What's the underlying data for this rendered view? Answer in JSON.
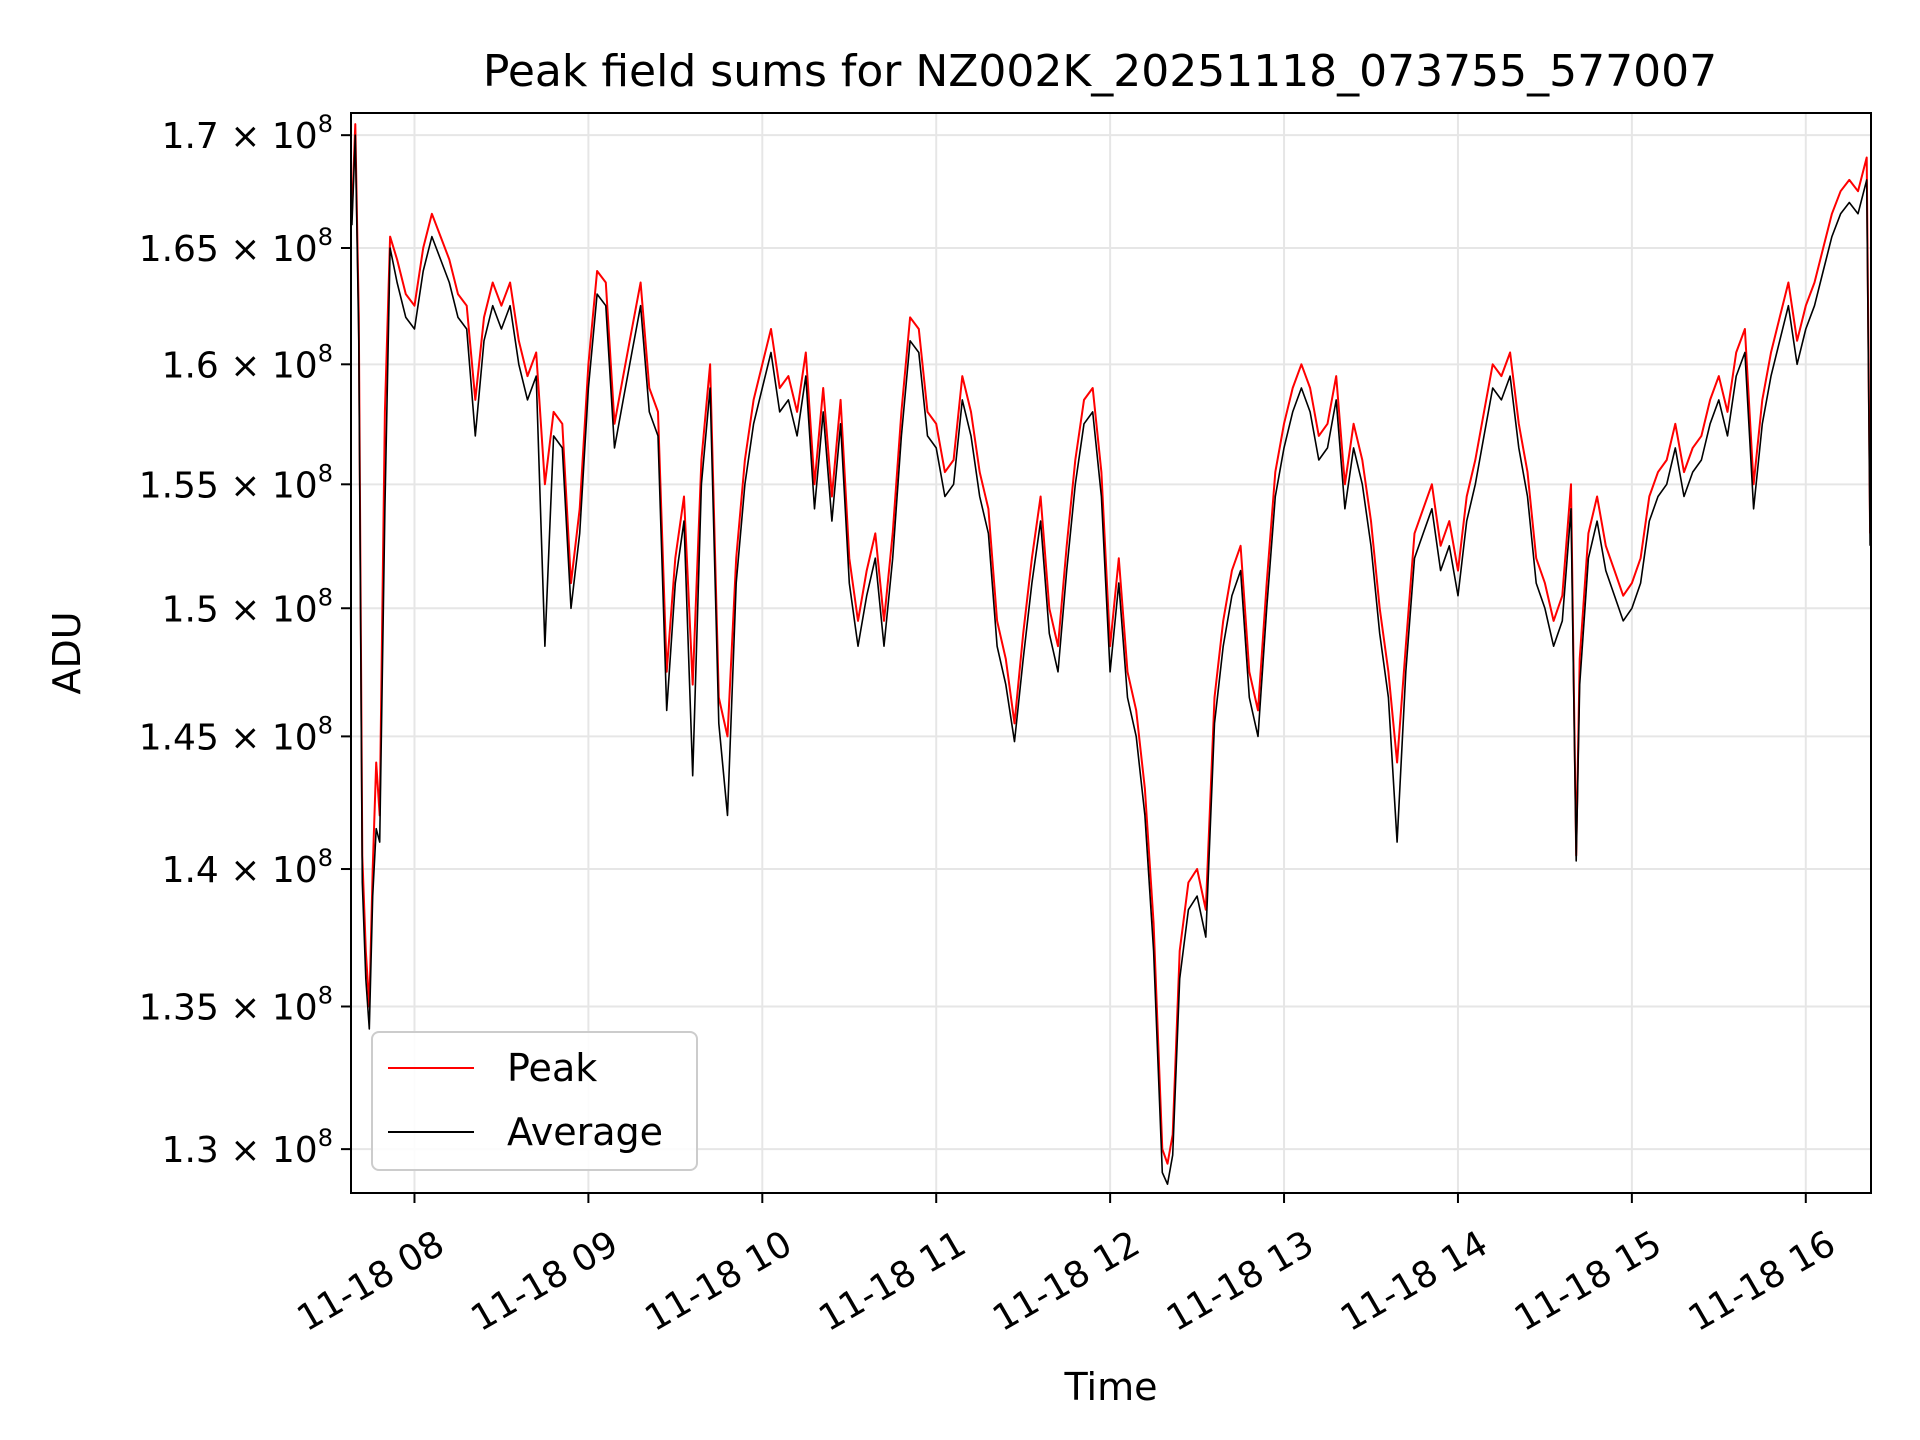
{
  "chart_data": {
    "type": "line",
    "title": "Peak field sums for NZ002K_20251118_073755_577007",
    "xlabel": "Time",
    "ylabel": "ADU",
    "yscale": "log",
    "ylim": [
      128500000,
      171000000
    ],
    "xlim_hours": [
      7.635,
      16.375
    ],
    "grid": true,
    "legend_position": "lower-left",
    "x_ticks": [
      {
        "hour": 8,
        "label": "11-18 08"
      },
      {
        "hour": 9,
        "label": "11-18 09"
      },
      {
        "hour": 10,
        "label": "11-18 10"
      },
      {
        "hour": 11,
        "label": "11-18 11"
      },
      {
        "hour": 12,
        "label": "11-18 12"
      },
      {
        "hour": 13,
        "label": "11-18 13"
      },
      {
        "hour": 14,
        "label": "11-18 14"
      },
      {
        "hour": 15,
        "label": "11-18 15"
      },
      {
        "hour": 16,
        "label": "11-18 16"
      }
    ],
    "y_ticks": [
      {
        "value": 130000000,
        "mantissa": "1.3",
        "exp": "8"
      },
      {
        "value": 135000000,
        "mantissa": "1.35",
        "exp": "8"
      },
      {
        "value": 140000000,
        "mantissa": "1.4",
        "exp": "8"
      },
      {
        "value": 145000000,
        "mantissa": "1.45",
        "exp": "8"
      },
      {
        "value": 150000000,
        "mantissa": "1.5",
        "exp": "8"
      },
      {
        "value": 155000000,
        "mantissa": "1.55",
        "exp": "8"
      },
      {
        "value": 160000000,
        "mantissa": "1.6",
        "exp": "8"
      },
      {
        "value": 165000000,
        "mantissa": "1.65",
        "exp": "8"
      },
      {
        "value": 170000000,
        "mantissa": "1.7",
        "exp": "8"
      }
    ],
    "tick_times_symbol": "×",
    "tick_base": "10",
    "series": [
      {
        "name": "Peak",
        "color": "#ff0000",
        "x_hours": [
          7.64,
          7.66,
          7.68,
          7.7,
          7.72,
          7.74,
          7.76,
          7.78,
          7.8,
          7.83,
          7.86,
          7.9,
          7.95,
          8.0,
          8.05,
          8.1,
          8.15,
          8.2,
          8.25,
          8.3,
          8.35,
          8.4,
          8.45,
          8.5,
          8.55,
          8.6,
          8.65,
          8.7,
          8.75,
          8.8,
          8.85,
          8.9,
          8.95,
          9.0,
          9.05,
          9.1,
          9.15,
          9.2,
          9.25,
          9.3,
          9.35,
          9.4,
          9.45,
          9.5,
          9.55,
          9.6,
          9.65,
          9.7,
          9.75,
          9.8,
          9.85,
          9.9,
          9.95,
          10.0,
          10.05,
          10.1,
          10.15,
          10.2,
          10.25,
          10.3,
          10.35,
          10.4,
          10.45,
          10.5,
          10.55,
          10.6,
          10.65,
          10.7,
          10.75,
          10.8,
          10.85,
          10.9,
          10.95,
          11.0,
          11.05,
          11.1,
          11.15,
          11.2,
          11.25,
          11.3,
          11.35,
          11.4,
          11.45,
          11.5,
          11.55,
          11.6,
          11.65,
          11.7,
          11.75,
          11.8,
          11.85,
          11.9,
          11.95,
          12.0,
          12.05,
          12.1,
          12.15,
          12.2,
          12.25,
          12.3,
          12.33,
          12.36,
          12.4,
          12.45,
          12.5,
          12.55,
          12.6,
          12.65,
          12.7,
          12.75,
          12.8,
          12.85,
          12.9,
          12.95,
          13.0,
          13.05,
          13.1,
          13.15,
          13.2,
          13.25,
          13.3,
          13.35,
          13.4,
          13.45,
          13.5,
          13.55,
          13.6,
          13.65,
          13.7,
          13.75,
          13.8,
          13.85,
          13.9,
          13.95,
          14.0,
          14.05,
          14.1,
          14.15,
          14.2,
          14.25,
          14.3,
          14.35,
          14.4,
          14.45,
          14.5,
          14.55,
          14.6,
          14.65,
          14.68,
          14.7,
          14.75,
          14.8,
          14.85,
          14.9,
          14.95,
          15.0,
          15.05,
          15.1,
          15.15,
          15.2,
          15.25,
          15.3,
          15.35,
          15.4,
          15.45,
          15.5,
          15.55,
          15.6,
          15.65,
          15.7,
          15.75,
          15.8,
          15.85,
          15.9,
          15.95,
          16.0,
          16.05,
          16.1,
          16.15,
          16.2,
          16.25,
          16.3,
          16.35,
          16.37
        ],
        "values": [
          166500000,
          170500000,
          162000000,
          140500000,
          137000000,
          135000000,
          140000000,
          144000000,
          142000000,
          158000000,
          165500000,
          164500000,
          163000000,
          162500000,
          165000000,
          166500000,
          165500000,
          164500000,
          163000000,
          162500000,
          158500000,
          162000000,
          163500000,
          162500000,
          163500000,
          161000000,
          159500000,
          160500000,
          155000000,
          158000000,
          157500000,
          151000000,
          154000000,
          160000000,
          164000000,
          163500000,
          157500000,
          159500000,
          161500000,
          163500000,
          159000000,
          158000000,
          147500000,
          152000000,
          154500000,
          147000000,
          156000000,
          160000000,
          146500000,
          145000000,
          152000000,
          156000000,
          158500000,
          160000000,
          161500000,
          159000000,
          159500000,
          158000000,
          160500000,
          155000000,
          159000000,
          154500000,
          158500000,
          152000000,
          149500000,
          151500000,
          153000000,
          149500000,
          153000000,
          158000000,
          162000000,
          161500000,
          158000000,
          157500000,
          155500000,
          156000000,
          159500000,
          158000000,
          155500000,
          154000000,
          149500000,
          148000000,
          145500000,
          149000000,
          152000000,
          154500000,
          150000000,
          148500000,
          152500000,
          156000000,
          158500000,
          159000000,
          155500000,
          148500000,
          152000000,
          147500000,
          146000000,
          143000000,
          138000000,
          130000000,
          129500000,
          130500000,
          137000000,
          139500000,
          140000000,
          138500000,
          146500000,
          149500000,
          151500000,
          152500000,
          147500000,
          146000000,
          151000000,
          155500000,
          157500000,
          159000000,
          160000000,
          159000000,
          157000000,
          157500000,
          159500000,
          155000000,
          157500000,
          156000000,
          153500000,
          150000000,
          147500000,
          144000000,
          148500000,
          153000000,
          154000000,
          155000000,
          152500000,
          153500000,
          151500000,
          154500000,
          156000000,
          158000000,
          160000000,
          159500000,
          160500000,
          157500000,
          155500000,
          152000000,
          151000000,
          149500000,
          150500000,
          155000000,
          140500000,
          148000000,
          153000000,
          154500000,
          152500000,
          151500000,
          150500000,
          151000000,
          152000000,
          154500000,
          155500000,
          156000000,
          157500000,
          155500000,
          156500000,
          157000000,
          158500000,
          159500000,
          158000000,
          160500000,
          161500000,
          155000000,
          158500000,
          160500000,
          162000000,
          163500000,
          161000000,
          162500000,
          163500000,
          165000000,
          166500000,
          167500000,
          168000000,
          167500000,
          169000000,
          153000000
        ]
      },
      {
        "name": "Average",
        "color": "#000000",
        "x_hours": [
          7.64,
          7.66,
          7.68,
          7.7,
          7.72,
          7.74,
          7.76,
          7.78,
          7.8,
          7.83,
          7.86,
          7.9,
          7.95,
          8.0,
          8.05,
          8.1,
          8.15,
          8.2,
          8.25,
          8.3,
          8.35,
          8.4,
          8.45,
          8.5,
          8.55,
          8.6,
          8.65,
          8.7,
          8.75,
          8.8,
          8.85,
          8.9,
          8.95,
          9.0,
          9.05,
          9.1,
          9.15,
          9.2,
          9.25,
          9.3,
          9.35,
          9.4,
          9.45,
          9.5,
          9.55,
          9.6,
          9.65,
          9.7,
          9.75,
          9.8,
          9.85,
          9.9,
          9.95,
          10.0,
          10.05,
          10.1,
          10.15,
          10.2,
          10.25,
          10.3,
          10.35,
          10.4,
          10.45,
          10.5,
          10.55,
          10.6,
          10.65,
          10.7,
          10.75,
          10.8,
          10.85,
          10.9,
          10.95,
          11.0,
          11.05,
          11.1,
          11.15,
          11.2,
          11.25,
          11.3,
          11.35,
          11.4,
          11.45,
          11.5,
          11.55,
          11.6,
          11.65,
          11.7,
          11.75,
          11.8,
          11.85,
          11.9,
          11.95,
          12.0,
          12.05,
          12.1,
          12.15,
          12.2,
          12.25,
          12.3,
          12.33,
          12.36,
          12.4,
          12.45,
          12.5,
          12.55,
          12.6,
          12.65,
          12.7,
          12.75,
          12.8,
          12.85,
          12.9,
          12.95,
          13.0,
          13.05,
          13.1,
          13.15,
          13.2,
          13.25,
          13.3,
          13.35,
          13.4,
          13.45,
          13.5,
          13.55,
          13.6,
          13.65,
          13.7,
          13.75,
          13.8,
          13.85,
          13.9,
          13.95,
          14.0,
          14.05,
          14.1,
          14.15,
          14.2,
          14.25,
          14.3,
          14.35,
          14.4,
          14.45,
          14.5,
          14.55,
          14.6,
          14.65,
          14.68,
          14.7,
          14.75,
          14.8,
          14.85,
          14.9,
          14.95,
          15.0,
          15.05,
          15.1,
          15.15,
          15.2,
          15.25,
          15.3,
          15.35,
          15.4,
          15.45,
          15.5,
          15.55,
          15.6,
          15.65,
          15.7,
          15.75,
          15.8,
          15.85,
          15.9,
          15.95,
          16.0,
          16.05,
          16.1,
          16.15,
          16.2,
          16.25,
          16.3,
          16.35,
          16.37
        ],
        "values": [
          166000000,
          170000000,
          161000000,
          139500000,
          136000000,
          134200000,
          139000000,
          141500000,
          141000000,
          154000000,
          165000000,
          163500000,
          162000000,
          161500000,
          164000000,
          165500000,
          164500000,
          163500000,
          162000000,
          161500000,
          157000000,
          161000000,
          162500000,
          161500000,
          162500000,
          160000000,
          158500000,
          159500000,
          148500000,
          157000000,
          156500000,
          150000000,
          153000000,
          159000000,
          163000000,
          162500000,
          156500000,
          158500000,
          160500000,
          162500000,
          158000000,
          157000000,
          146000000,
          151000000,
          153500000,
          143500000,
          155000000,
          159000000,
          145500000,
          142000000,
          151000000,
          155000000,
          157500000,
          159000000,
          160500000,
          158000000,
          158500000,
          157000000,
          159500000,
          154000000,
          158000000,
          153500000,
          157500000,
          151000000,
          148500000,
          150500000,
          152000000,
          148500000,
          152000000,
          157000000,
          161000000,
          160500000,
          157000000,
          156500000,
          154500000,
          155000000,
          158500000,
          157000000,
          154500000,
          153000000,
          148500000,
          147000000,
          144800000,
          148000000,
          151000000,
          153500000,
          149000000,
          147500000,
          151500000,
          155000000,
          157500000,
          158000000,
          154500000,
          147500000,
          151000000,
          146500000,
          145000000,
          142000000,
          137000000,
          129200000,
          128800000,
          129800000,
          136000000,
          138500000,
          139000000,
          137500000,
          145500000,
          148500000,
          150500000,
          151500000,
          146500000,
          145000000,
          150000000,
          154500000,
          156500000,
          158000000,
          159000000,
          158000000,
          156000000,
          156500000,
          158500000,
          154000000,
          156500000,
          155000000,
          152500000,
          149000000,
          146500000,
          141000000,
          147500000,
          152000000,
          153000000,
          154000000,
          151500000,
          152500000,
          150500000,
          153500000,
          155000000,
          157000000,
          159000000,
          158500000,
          159500000,
          156500000,
          154500000,
          151000000,
          150000000,
          148500000,
          149500000,
          154000000,
          140300000,
          147000000,
          152000000,
          153500000,
          151500000,
          150500000,
          149500000,
          150000000,
          151000000,
          153500000,
          154500000,
          155000000,
          156500000,
          154500000,
          155500000,
          156000000,
          157500000,
          158500000,
          157000000,
          159500000,
          160500000,
          154000000,
          157500000,
          159500000,
          161000000,
          162500000,
          160000000,
          161500000,
          162500000,
          164000000,
          165500000,
          166500000,
          167000000,
          166500000,
          168000000,
          152500000
        ]
      }
    ]
  }
}
